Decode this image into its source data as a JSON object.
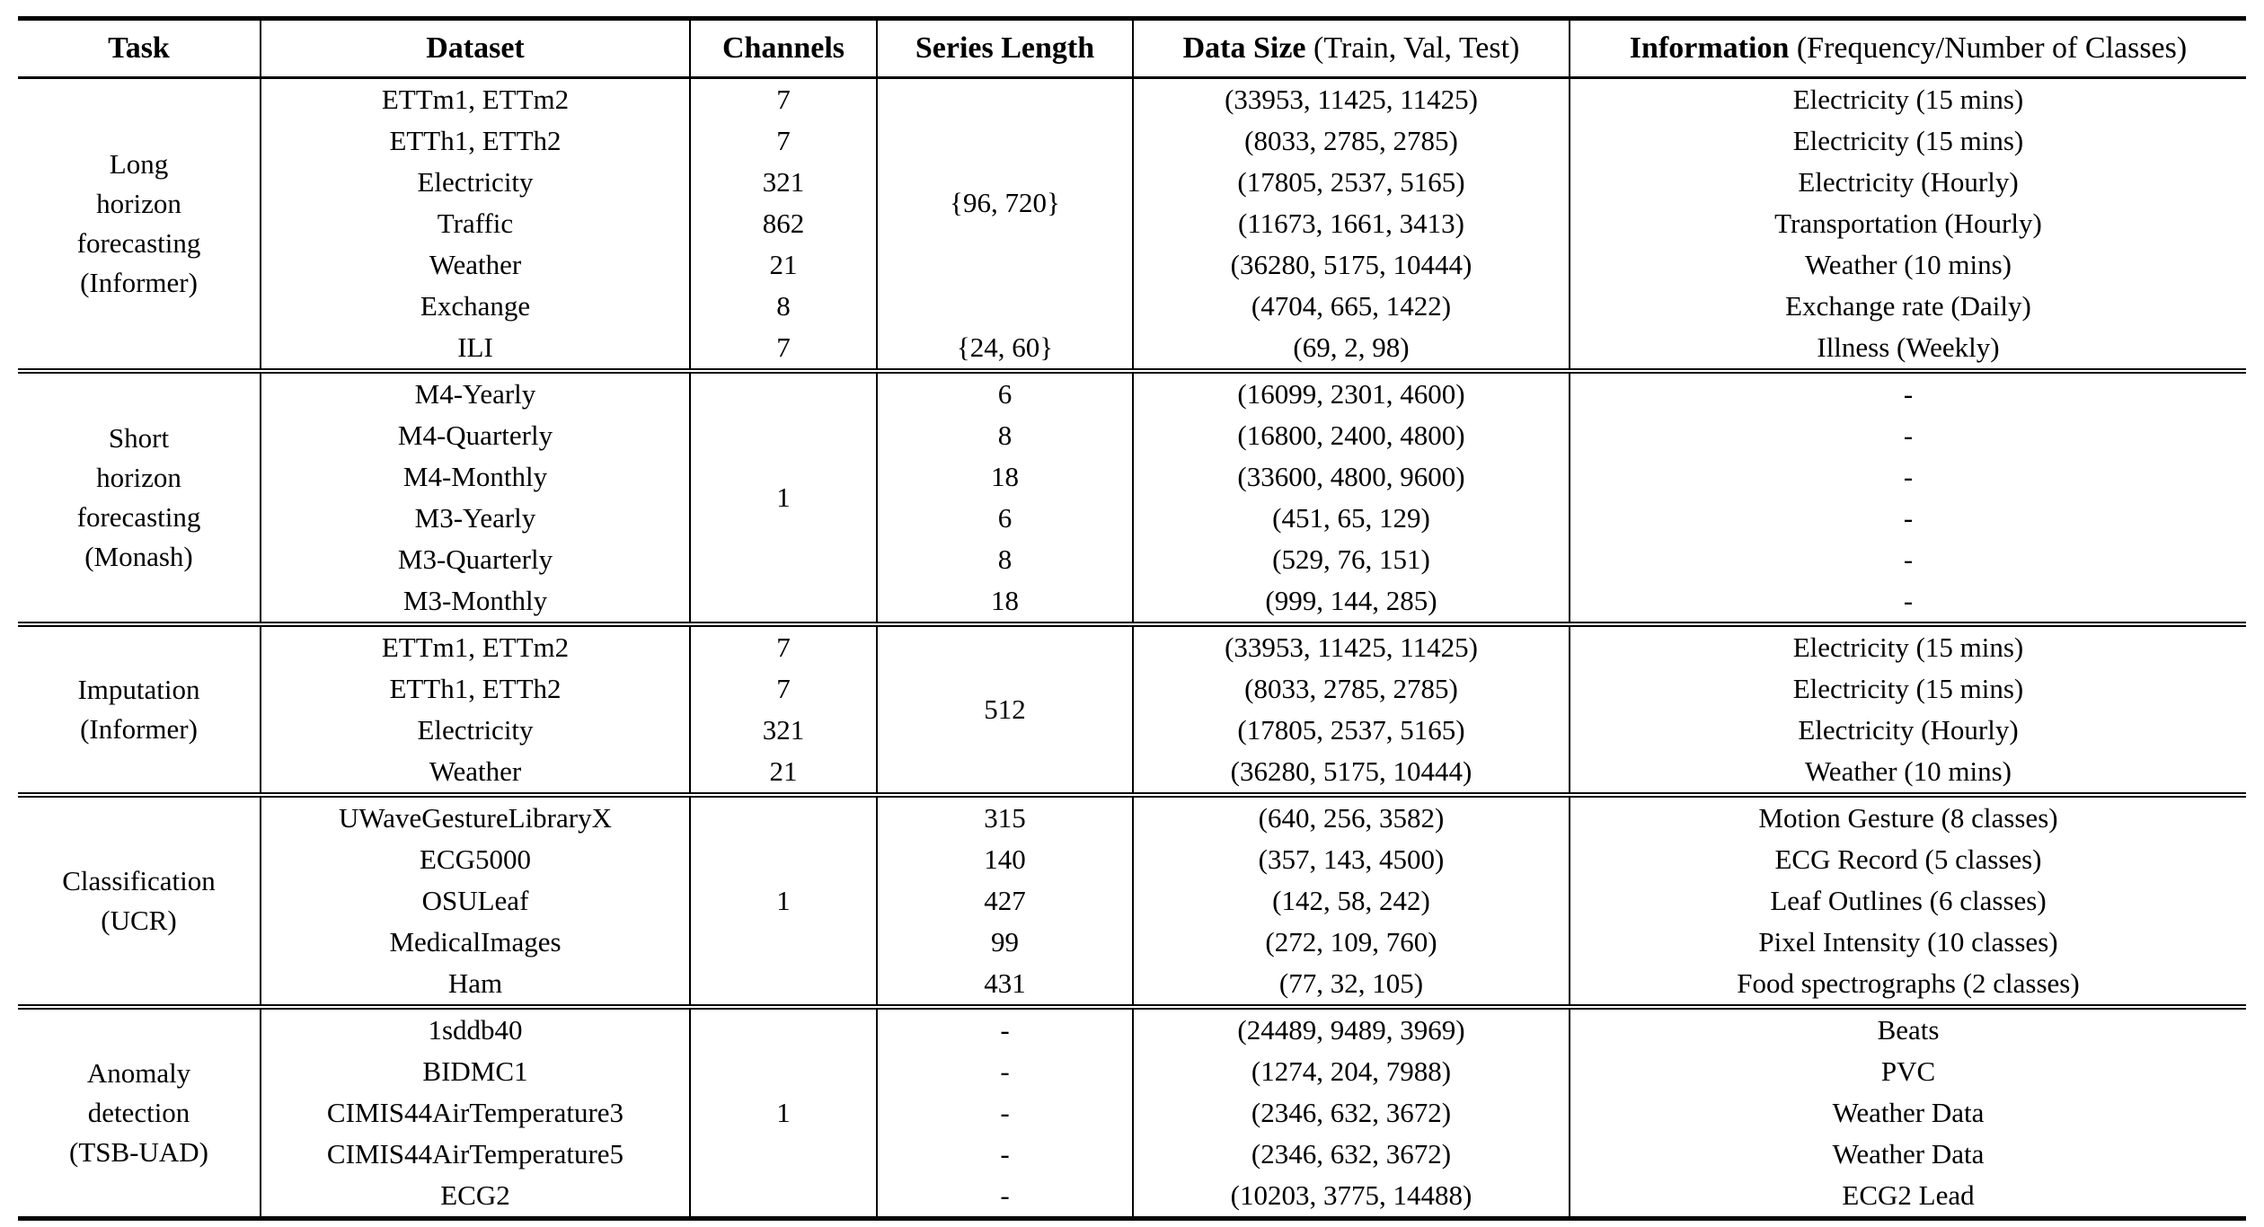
{
  "table": {
    "headers": [
      {
        "bold": "Task",
        "normal": ""
      },
      {
        "bold": "Dataset",
        "normal": ""
      },
      {
        "bold": "Channels",
        "normal": ""
      },
      {
        "bold": "Series Length",
        "normal": ""
      },
      {
        "bold": "Data Size",
        "normal": " (Train, Val, Test)"
      },
      {
        "bold": "Information",
        "normal": " (Frequency/Number of Classes)"
      }
    ],
    "groups": [
      {
        "task_lines": [
          "Long",
          "horizon",
          "forecasting",
          "(Informer)"
        ],
        "rows": [
          {
            "dataset": "ETTm1, ETTm2",
            "channels": "7",
            "series_length": {
              "text": "{96, 720}",
              "rowspan": 6
            },
            "data_size": "(33953, 11425, 11425)",
            "information": "Electricity (15 mins)"
          },
          {
            "dataset": "ETTh1, ETTh2",
            "channels": "7",
            "series_length": null,
            "data_size": "(8033, 2785, 2785)",
            "information": "Electricity (15 mins)"
          },
          {
            "dataset": "Electricity",
            "channels": "321",
            "series_length": null,
            "data_size": "(17805, 2537, 5165)",
            "information": "Electricity (Hourly)"
          },
          {
            "dataset": "Traffic",
            "channels": "862",
            "series_length": null,
            "data_size": "(11673, 1661, 3413)",
            "information": "Transportation (Hourly)"
          },
          {
            "dataset": "Weather",
            "channels": "21",
            "series_length": null,
            "data_size": "(36280, 5175, 10444)",
            "information": "Weather (10 mins)"
          },
          {
            "dataset": "Exchange",
            "channels": "8",
            "series_length": null,
            "data_size": "(4704, 665, 1422)",
            "information": "Exchange rate (Daily)"
          },
          {
            "dataset": "ILI",
            "channels": "7",
            "series_length": "{24, 60}",
            "data_size": "(69, 2, 98)",
            "information": "Illness (Weekly)"
          }
        ]
      },
      {
        "task_lines": [
          "Short",
          "horizon",
          "forecasting",
          "(Monash)"
        ],
        "rows": [
          {
            "dataset": "M4-Yearly",
            "channels": {
              "text": "1",
              "rowspan": 6
            },
            "series_length": "6",
            "data_size": "(16099, 2301, 4600)",
            "information": "-"
          },
          {
            "dataset": "M4-Quarterly",
            "channels": null,
            "series_length": "8",
            "data_size": "(16800, 2400, 4800)",
            "information": "-"
          },
          {
            "dataset": "M4-Monthly",
            "channels": null,
            "series_length": "18",
            "data_size": "(33600, 4800, 9600)",
            "information": "-"
          },
          {
            "dataset": "M3-Yearly",
            "channels": null,
            "series_length": "6",
            "data_size": "(451, 65, 129)",
            "information": "-"
          },
          {
            "dataset": "M3-Quarterly",
            "channels": null,
            "series_length": "8",
            "data_size": "(529, 76, 151)",
            "information": "-"
          },
          {
            "dataset": "M3-Monthly",
            "channels": null,
            "series_length": "18",
            "data_size": "(999, 144, 285)",
            "information": "-"
          }
        ]
      },
      {
        "task_lines": [
          "Imputation",
          "(Informer)"
        ],
        "rows": [
          {
            "dataset": "ETTm1, ETTm2",
            "channels": "7",
            "series_length": {
              "text": "512",
              "rowspan": 4
            },
            "data_size": "(33953, 11425, 11425)",
            "information": "Electricity (15 mins)"
          },
          {
            "dataset": "ETTh1, ETTh2",
            "channels": "7",
            "series_length": null,
            "data_size": "(8033, 2785, 2785)",
            "information": "Electricity (15 mins)"
          },
          {
            "dataset": "Electricity",
            "channels": "321",
            "series_length": null,
            "data_size": "(17805, 2537, 5165)",
            "information": "Electricity (Hourly)"
          },
          {
            "dataset": "Weather",
            "channels": "21",
            "series_length": null,
            "data_size": "(36280, 5175, 10444)",
            "information": "Weather (10 mins)"
          }
        ]
      },
      {
        "task_lines": [
          "Classification",
          "(UCR)"
        ],
        "rows": [
          {
            "dataset": "UWaveGestureLibraryX",
            "channels": {
              "text": "1",
              "rowspan": 5
            },
            "series_length": "315",
            "data_size": "(640, 256, 3582)",
            "information": "Motion Gesture (8 classes)"
          },
          {
            "dataset": "ECG5000",
            "channels": null,
            "series_length": "140",
            "data_size": "(357, 143, 4500)",
            "information": "ECG Record (5 classes)"
          },
          {
            "dataset": "OSULeaf",
            "channels": null,
            "series_length": "427",
            "data_size": "(142, 58, 242)",
            "information": "Leaf Outlines (6 classes)"
          },
          {
            "dataset": "MedicalImages",
            "channels": null,
            "series_length": "99",
            "data_size": "(272, 109, 760)",
            "information": "Pixel Intensity (10 classes)"
          },
          {
            "dataset": "Ham",
            "channels": null,
            "series_length": "431",
            "data_size": "(77, 32, 105)",
            "information": "Food spectrographs (2 classes)"
          }
        ]
      },
      {
        "task_lines": [
          "Anomaly",
          "detection",
          "(TSB-UAD)"
        ],
        "rows": [
          {
            "dataset": "1sddb40",
            "channels": {
              "text": "1",
              "rowspan": 5
            },
            "series_length": "-",
            "data_size": "(24489, 9489, 3969)",
            "information": "Beats"
          },
          {
            "dataset": "BIDMC1",
            "channels": null,
            "series_length": "-",
            "data_size": "(1274, 204, 7988)",
            "information": "PVC"
          },
          {
            "dataset": "CIMIS44AirTemperature3",
            "channels": null,
            "series_length": "-",
            "data_size": "(2346, 632, 3672)",
            "information": "Weather Data"
          },
          {
            "dataset": "CIMIS44AirTemperature5",
            "channels": null,
            "series_length": "-",
            "data_size": "(2346, 632, 3672)",
            "information": "Weather Data"
          },
          {
            "dataset": "ECG2",
            "channels": null,
            "series_length": "-",
            "data_size": "(10203, 3775, 14488)",
            "information": "ECG2 Lead"
          }
        ]
      }
    ]
  }
}
